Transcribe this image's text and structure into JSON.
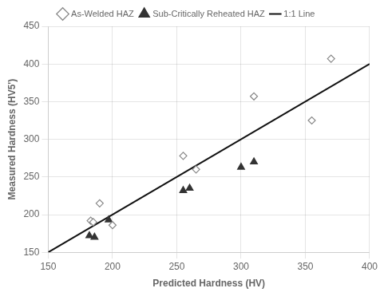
{
  "chart_data": {
    "type": "scatter",
    "x_label": "Predicted Hardness (HV)",
    "y_label": "Measured Hardness (HV5')",
    "xlim": [
      150,
      400
    ],
    "ylim": [
      150,
      450
    ],
    "xticks": [
      150,
      200,
      250,
      300,
      350,
      400
    ],
    "yticks": [
      150,
      200,
      250,
      300,
      350,
      400,
      450
    ],
    "grid": true,
    "legend": "top",
    "series": [
      {
        "name": "As-Welded HAZ",
        "type": "scatter",
        "marker": "diamond",
        "color": "#888888",
        "x": [
          183,
          185,
          190,
          200,
          255,
          265,
          310,
          355,
          370
        ],
        "values": [
          192,
          190,
          215,
          186,
          278,
          260,
          357,
          325,
          407
        ]
      },
      {
        "name": "Sub-Critically Reheated HAZ",
        "type": "scatter",
        "marker": "triangle",
        "color": "#333333",
        "x": [
          182,
          186,
          197,
          255,
          260,
          300,
          310
        ],
        "values": [
          172,
          170,
          193,
          232,
          235,
          263,
          270
        ]
      },
      {
        "name": "1:1 Line",
        "type": "line",
        "line_style": "solid",
        "color": "#111111",
        "x": [
          150,
          400
        ],
        "values": [
          150,
          400
        ]
      }
    ]
  }
}
